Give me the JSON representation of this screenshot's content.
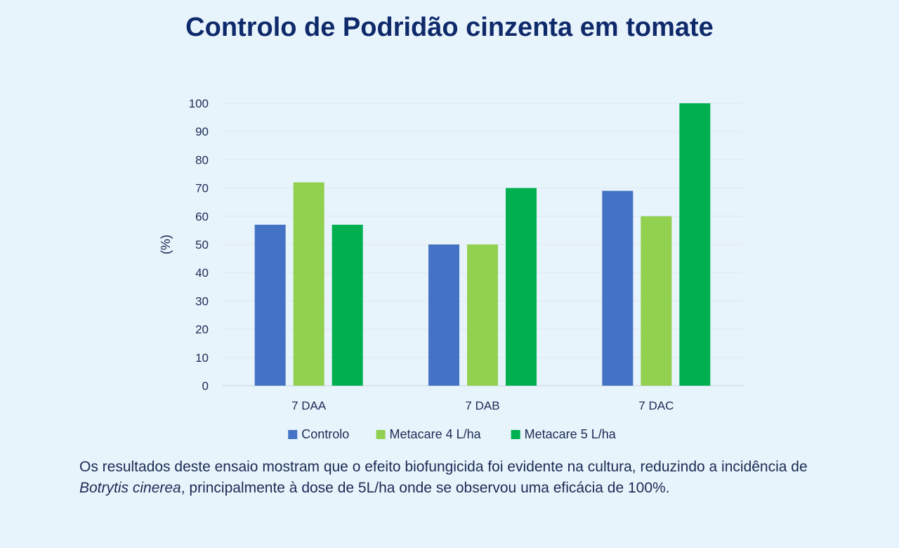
{
  "title": "Controlo de Podridão cinzenta em tomate",
  "chart_data": {
    "type": "bar",
    "categories": [
      "7 DAA",
      "7 DAB",
      "7 DAC"
    ],
    "series": [
      {
        "name": "Controlo",
        "values": [
          57,
          50,
          69
        ],
        "color": "#4472c4"
      },
      {
        "name": "Metacare 4 L/ha",
        "values": [
          72,
          50,
          60
        ],
        "color": "#92d050"
      },
      {
        "name": "Metacare 5 L/ha",
        "values": [
          57,
          70,
          100
        ],
        "color": "#00b050"
      }
    ],
    "ylabel": "(%)",
    "ylim": [
      0,
      100
    ],
    "yticks": [
      0,
      10,
      20,
      30,
      40,
      50,
      60,
      70,
      80,
      90,
      100
    ],
    "grid": true,
    "legend": "bottom"
  },
  "caption": {
    "before": "Os resultados deste ensaio mostram que o efeito biofungicida foi evidente na cultura, reduzindo a incidência de ",
    "italic": "Botrytis cinerea",
    "after": ", principalmente à dose de 5L/ha onde se observou uma eficácia de 100%."
  }
}
